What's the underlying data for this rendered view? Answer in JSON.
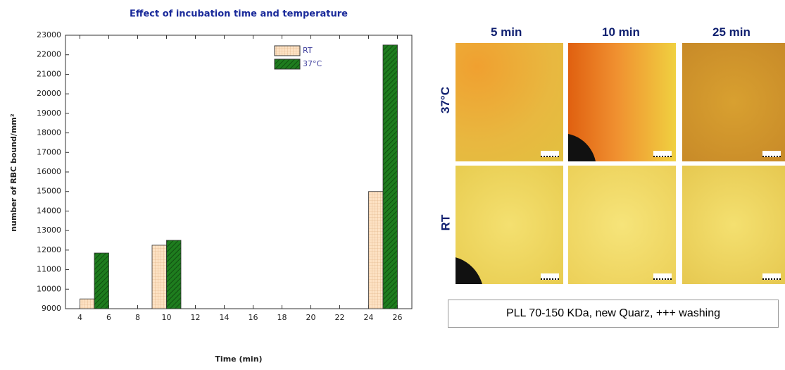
{
  "chart_data": {
    "type": "bar",
    "title": "Effect of incubation time and temperature",
    "x_label": "Time (min)",
    "y_label": "number of RBC bound/mm²",
    "x": [
      5,
      10,
      25
    ],
    "series": [
      {
        "name": "RT",
        "color": "#fde2c4",
        "values": [
          9500,
          12250,
          15000
        ]
      },
      {
        "name": "37°C",
        "color": "#1e7d1e",
        "values": [
          11850,
          12500,
          22500
        ]
      }
    ],
    "xlim": [
      3,
      27
    ],
    "xticks": [
      4,
      6,
      8,
      10,
      12,
      14,
      16,
      18,
      20,
      22,
      24,
      26
    ],
    "ylim": [
      9000,
      23000
    ],
    "yticks": [
      9000,
      10000,
      11000,
      12000,
      13000,
      14000,
      15000,
      16000,
      17000,
      18000,
      19000,
      20000,
      21000,
      22000,
      23000
    ],
    "legend": "upper-right"
  },
  "micrographs": {
    "columns": [
      "5 min",
      "10 min",
      "25 min"
    ],
    "rows": [
      "37°C",
      "RT"
    ],
    "caption": "PLL 70-150 KDa, new Quarz, +++ washing"
  }
}
